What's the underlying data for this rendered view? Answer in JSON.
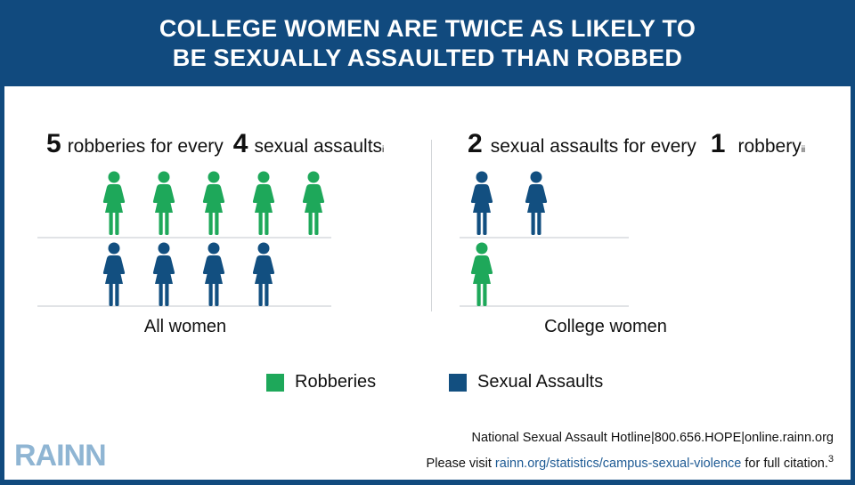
{
  "header": {
    "line1": "COLLEGE WOMEN ARE TWICE AS LIKELY TO",
    "line2": "BE SEXUALLY ASSAULTED THAN ROBBED"
  },
  "colors": {
    "robberies": "#1ea85a",
    "sexual_assaults": "#124f80",
    "header_bg": "#114a7e"
  },
  "chart_data": [
    {
      "type": "pictograph",
      "title_parts": {
        "n1": "5",
        "t1": "robberies for every",
        "n2": "4",
        "t2": "sexual assaults",
        "note": "i"
      },
      "caption": "All women",
      "series": [
        {
          "name": "Robberies",
          "values": [
            5
          ]
        },
        {
          "name": "Sexual Assaults",
          "values": [
            4
          ]
        }
      ]
    },
    {
      "type": "pictograph",
      "title_parts": {
        "n1": "2",
        "t1": "sexual assaults for every",
        "n2": "1",
        "t2": "robbery",
        "note": "ii"
      },
      "caption": "College women",
      "series": [
        {
          "name": "Sexual Assaults",
          "values": [
            2
          ]
        },
        {
          "name": "Robberies",
          "values": [
            1
          ]
        }
      ]
    }
  ],
  "legend": {
    "robberies": "Robberies",
    "sexual_assaults": "Sexual Assaults"
  },
  "footer": {
    "hotline": "National Sexual Assault Hotline|800.656.HOPE|online.rainn.org",
    "visit_prefix": "Please visit",
    "link": "rainn.org/statistics/campus-sexual-violence",
    "visit_suffix": "for full citation.",
    "citation_number": "3"
  },
  "logo": "RAINN"
}
